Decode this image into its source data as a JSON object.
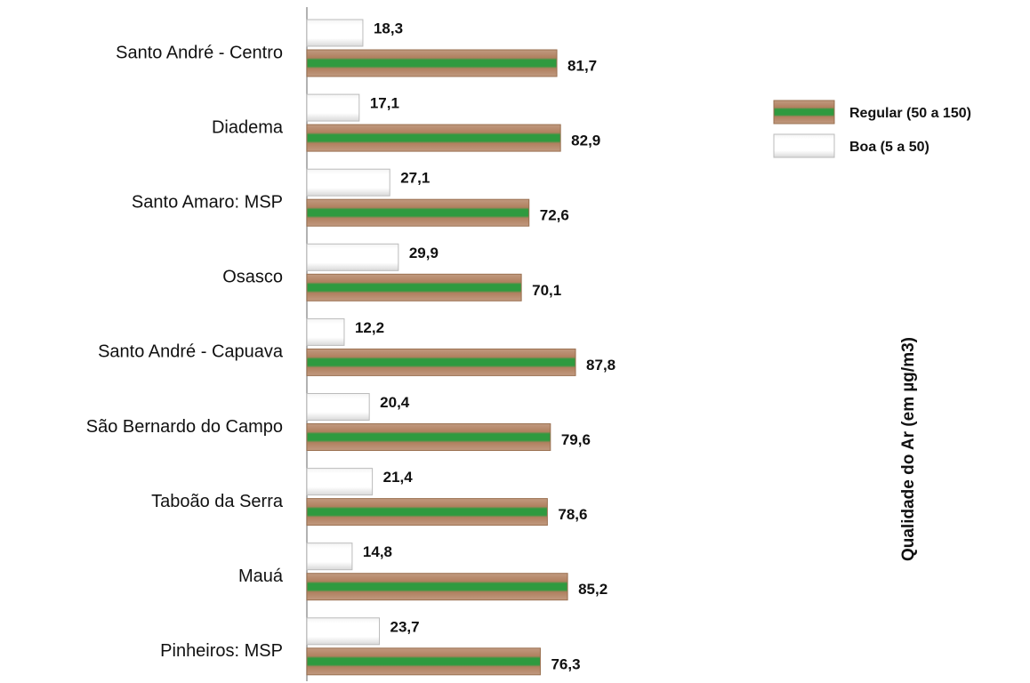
{
  "chart_data": {
    "type": "hbar",
    "y_label": "Qualidade do Ar (em µg/m3)",
    "categories": [
      "Santo André - Centro",
      "Diadema",
      "Santo Amaro: MSP",
      "Osasco",
      "Santo André - Capuava",
      "São Bernardo do Campo",
      "Taboão da Serra",
      "Mauá",
      "Pinheiros: MSP"
    ],
    "series": [
      {
        "name": "Regular (50 a 150)",
        "color": "#2f9a3f",
        "values": [
          81.7,
          82.9,
          72.6,
          70.1,
          87.8,
          79.6,
          78.6,
          85.2,
          76.3
        ],
        "value_labels": [
          "81,7",
          "82,9",
          "72,6",
          "70,1",
          "87,8",
          "79,6",
          "78,6",
          "85,2",
          "76,3"
        ]
      },
      {
        "name": "Boa (5 a 50)",
        "color": "#d9d9d9",
        "values": [
          18.3,
          17.1,
          27.1,
          29.9,
          12.2,
          20.4,
          21.4,
          14.8,
          23.7
        ],
        "value_labels": [
          "18,3",
          "17,1",
          "27,1",
          "29,9",
          "12,2",
          "20,4",
          "21,4",
          "14,8",
          "23,7"
        ]
      }
    ],
    "legend": "right"
  }
}
